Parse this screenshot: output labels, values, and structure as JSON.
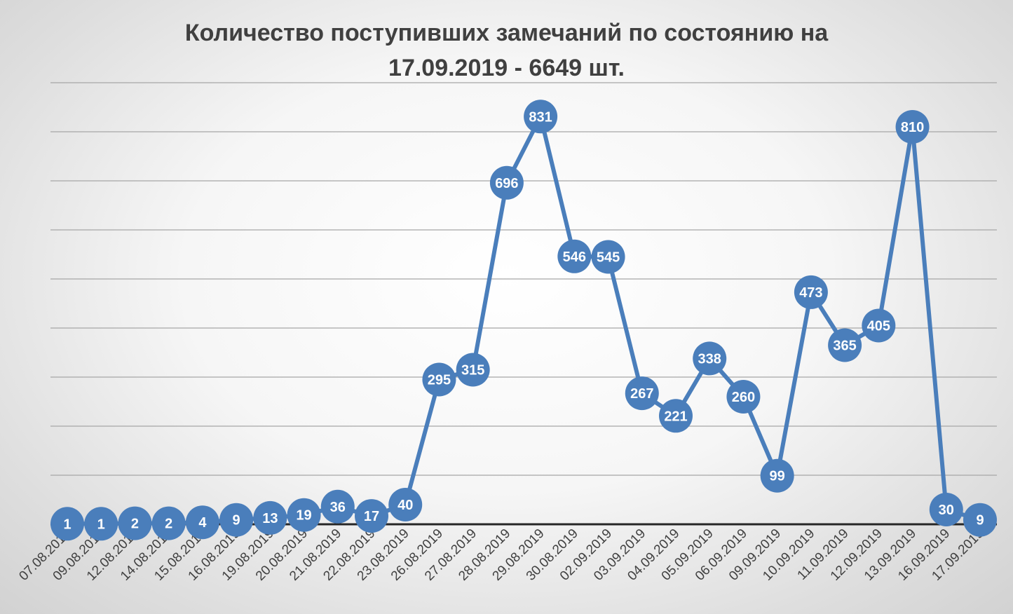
{
  "chart_data": {
    "type": "line",
    "title_line1": "Количество поступивших замечаний по состоянию на",
    "title_line2": "17.09.2019 - 6649 шт.",
    "categories": [
      "07.08.2019",
      "09.08.2019",
      "12.08.2019",
      "14.08.2019",
      "15.08.2019",
      "16.08.2019",
      "19.08.2019",
      "20.08.2019",
      "21.08.2019",
      "22.08.2019",
      "23.08.2019",
      "26.08.2019",
      "27.08.2019",
      "28.08.2019",
      "29.08.2019",
      "30.08.2019",
      "02.09.2019",
      "03.09.2019",
      "04.09.2019",
      "05.09.2019",
      "06.09.2019",
      "09.09.2019",
      "10.09.2019",
      "11.09.2019",
      "12.09.2019",
      "13.09.2019",
      "16.09.2019",
      "17.09.2019"
    ],
    "values": [
      1,
      1,
      2,
      2,
      4,
      9,
      13,
      19,
      36,
      17,
      40,
      295,
      315,
      696,
      831,
      546,
      545,
      267,
      221,
      338,
      260,
      99,
      473,
      365,
      405,
      810,
      30,
      9
    ],
    "ylim": [
      0,
      900
    ],
    "grid": true,
    "y_tick_labels_shown": false,
    "line_color": "#4a7ebb",
    "marker_color": "#4a7ebb",
    "label_color": "#ffffff"
  }
}
